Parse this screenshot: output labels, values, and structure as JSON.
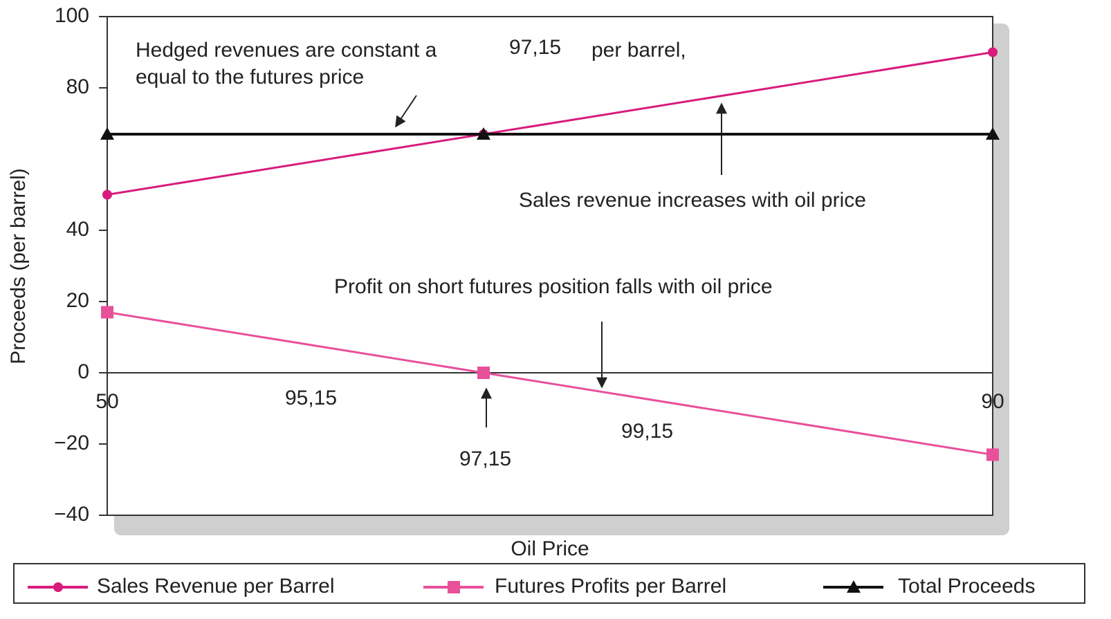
{
  "chart_data": {
    "type": "line",
    "x": [
      50,
      67,
      90
    ],
    "series": [
      {
        "name": "Sales Revenue per Barrel",
        "color": "#d81b7c",
        "marker": "circle",
        "values": [
          50,
          67,
          90
        ]
      },
      {
        "name": "Futures Profits per Barrel",
        "color": "#e8509a",
        "marker": "square",
        "values": [
          17,
          0,
          -23
        ]
      },
      {
        "name": "Total Proceeds",
        "color": "#111111",
        "marker": "triangle",
        "values": [
          67,
          67,
          67
        ]
      }
    ],
    "xlim": [
      50,
      90
    ],
    "xticks": [
      50,
      90
    ],
    "ylim": [
      -40,
      100
    ],
    "yticks": [
      {
        "value": -40,
        "label": "−40"
      },
      {
        "value": -20,
        "label": "−20"
      },
      0,
      20,
      40,
      80,
      100
    ],
    "x_label": "Oil Price",
    "y_label": "Proceeds (per barrel)",
    "annotations": [
      "Hedged revenues are constant a",
      "97,15",
      "per barrel,",
      "equal to the futures price",
      "Sales revenue increases with oil price",
      "Profit on short futures position falls with oil price",
      "95,15",
      "97,15",
      "99,15"
    ],
    "legend": "bottom"
  }
}
